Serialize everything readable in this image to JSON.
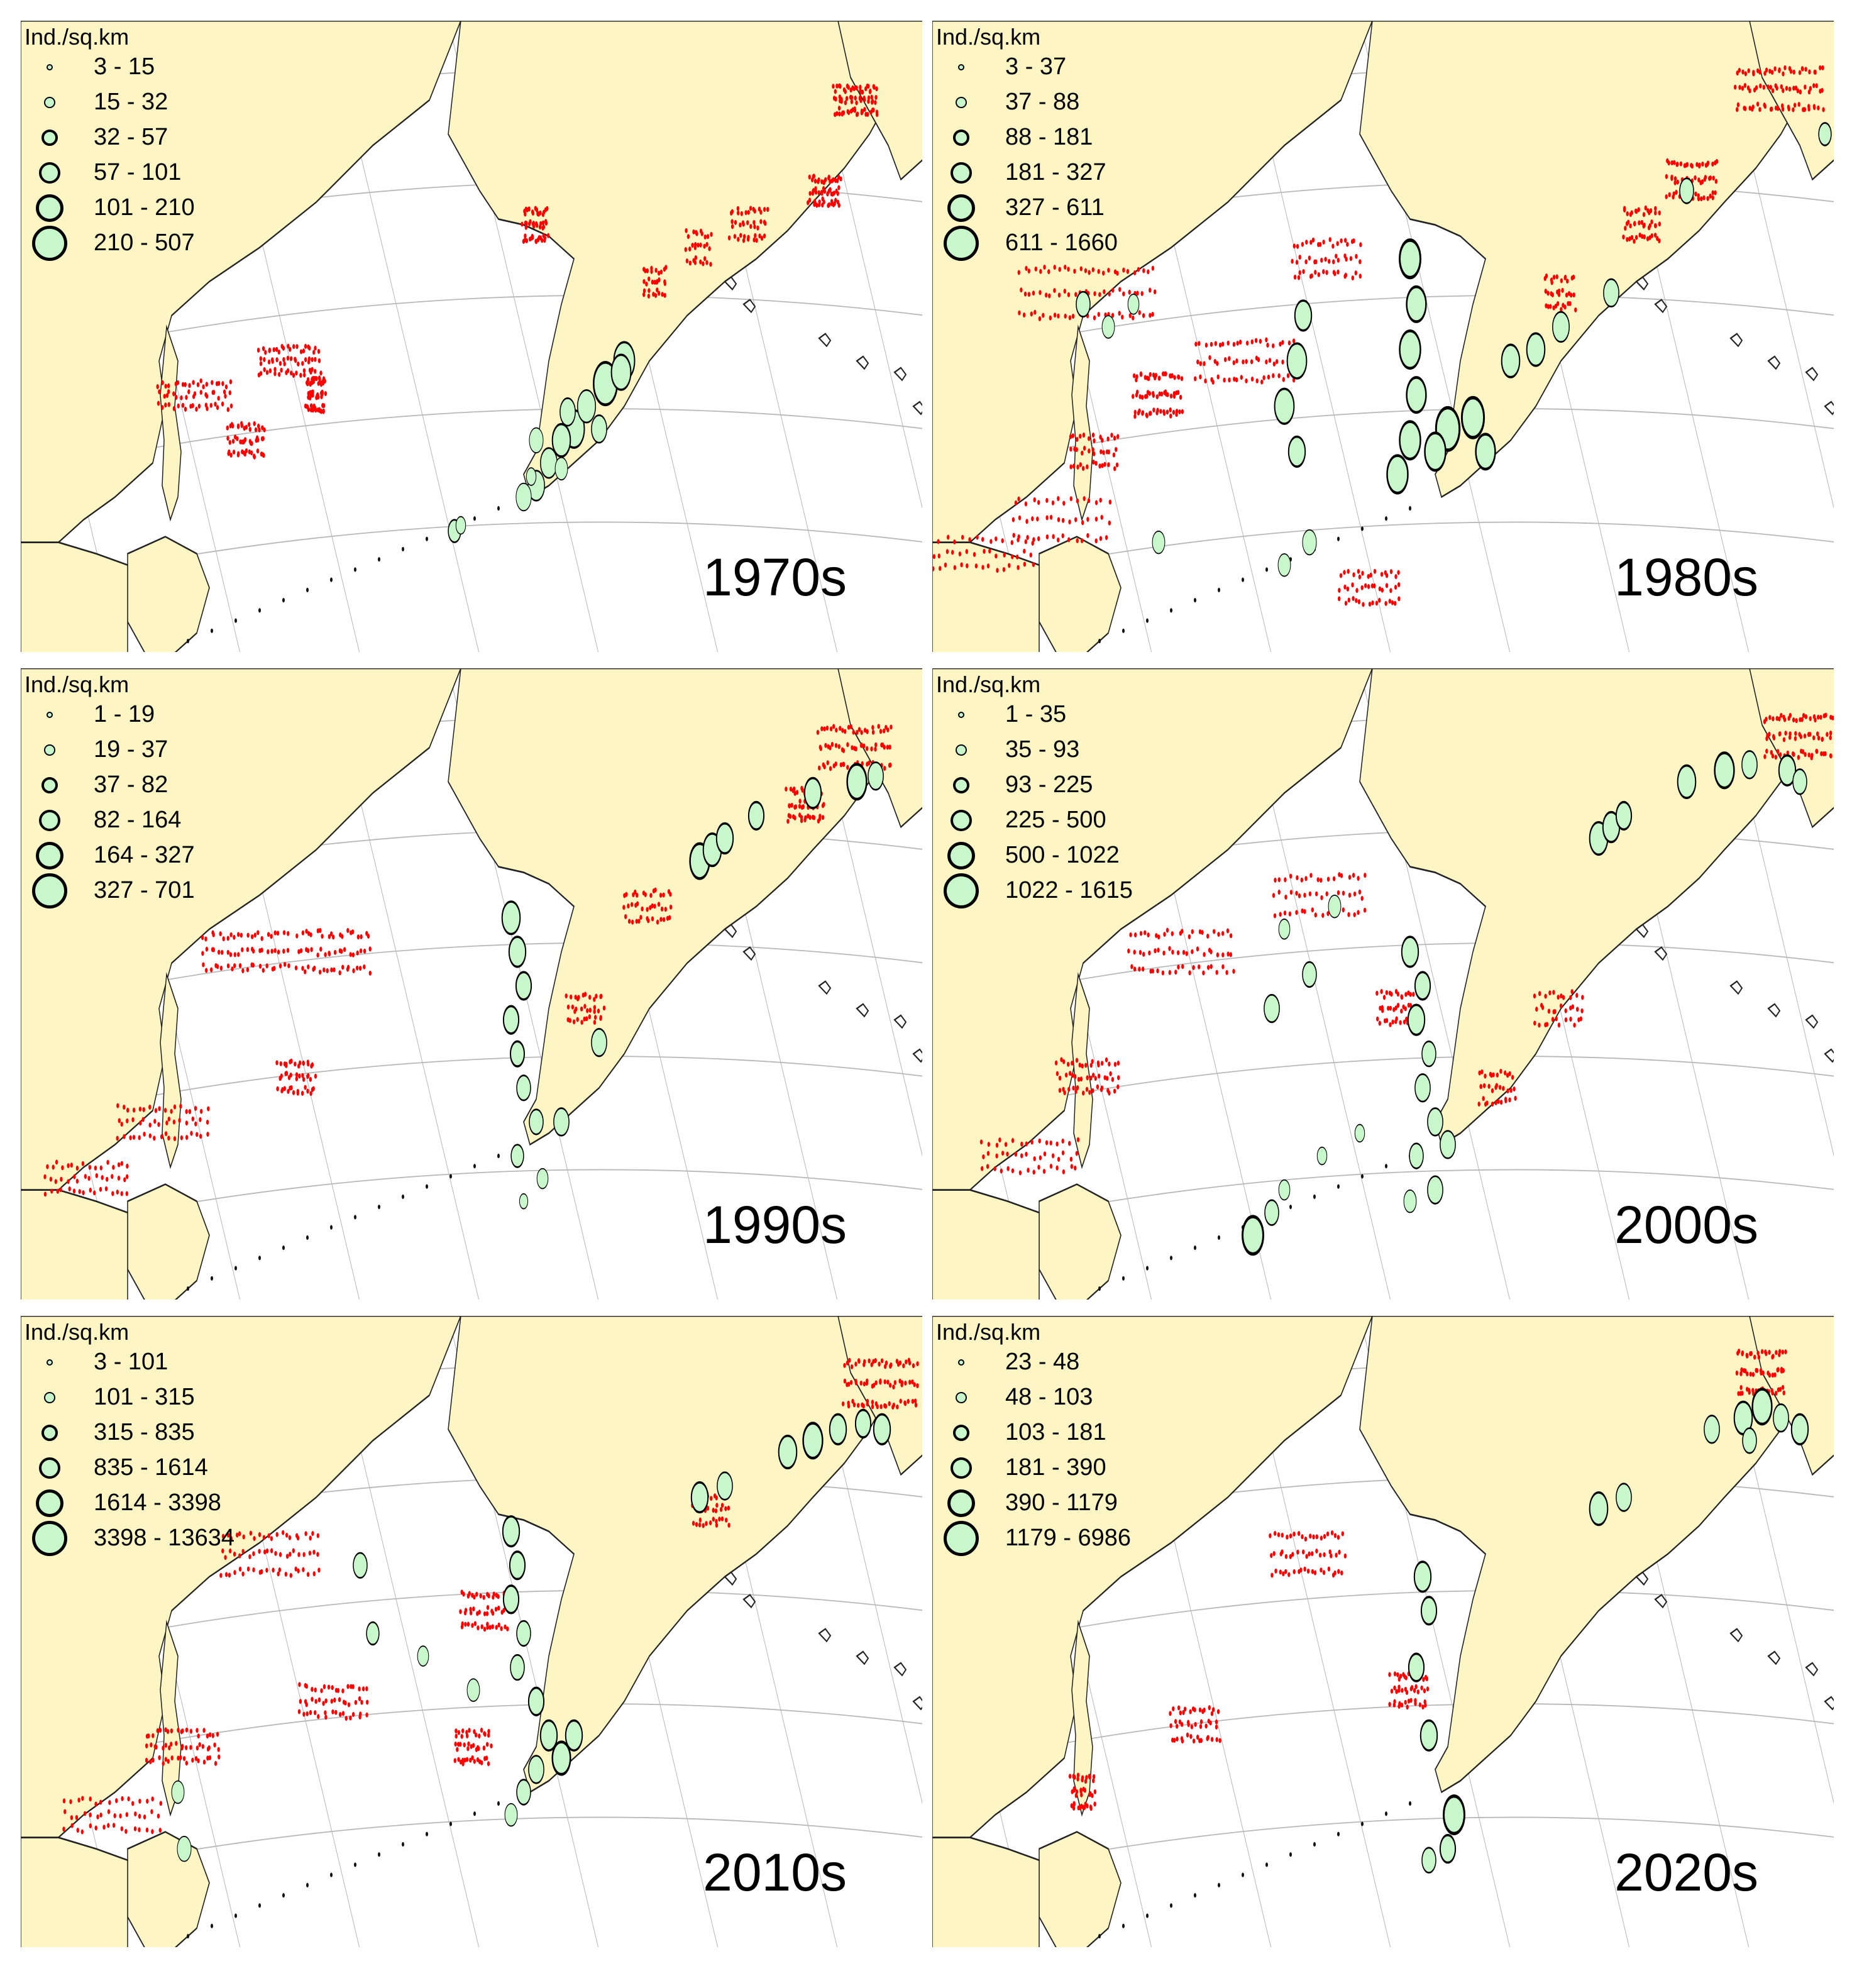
{
  "legend_title": "Ind./sq.km",
  "colors": {
    "land": "#fdf5c4",
    "sea": "#ffffff",
    "survey_station": "#ff0000",
    "density_fill": "#c8f7cc",
    "density_outline": "#000000"
  },
  "panels": [
    {
      "decade": "1970s",
      "classes": [
        "3 - 15",
        "15 - 32",
        "32 - 57",
        "57 - 101",
        "101 - 210",
        "210 - 507"
      ]
    },
    {
      "decade": "1980s",
      "classes": [
        "3 - 37",
        "37 - 88",
        "88 - 181",
        "181 - 327",
        "327 - 611",
        "611 - 1660"
      ]
    },
    {
      "decade": "1990s",
      "classes": [
        "1 - 19",
        "19 - 37",
        "37 - 82",
        "82 - 164",
        "164 - 327",
        "327 - 701"
      ]
    },
    {
      "decade": "2000s",
      "classes": [
        "1 - 35",
        "35 - 93",
        "93 - 225",
        "225 - 500",
        "500 - 1022",
        "1022 - 1615"
      ]
    },
    {
      "decade": "2010s",
      "classes": [
        "3 - 101",
        "101 - 315",
        "315 - 835",
        "835 - 1614",
        "1614 - 3398",
        "3398 - 13634"
      ]
    },
    {
      "decade": "2020s",
      "classes": [
        "23 - 48",
        "48 - 103",
        "103 - 181",
        "181 - 390",
        "390 - 1179",
        "1179 - 6986"
      ]
    }
  ]
}
